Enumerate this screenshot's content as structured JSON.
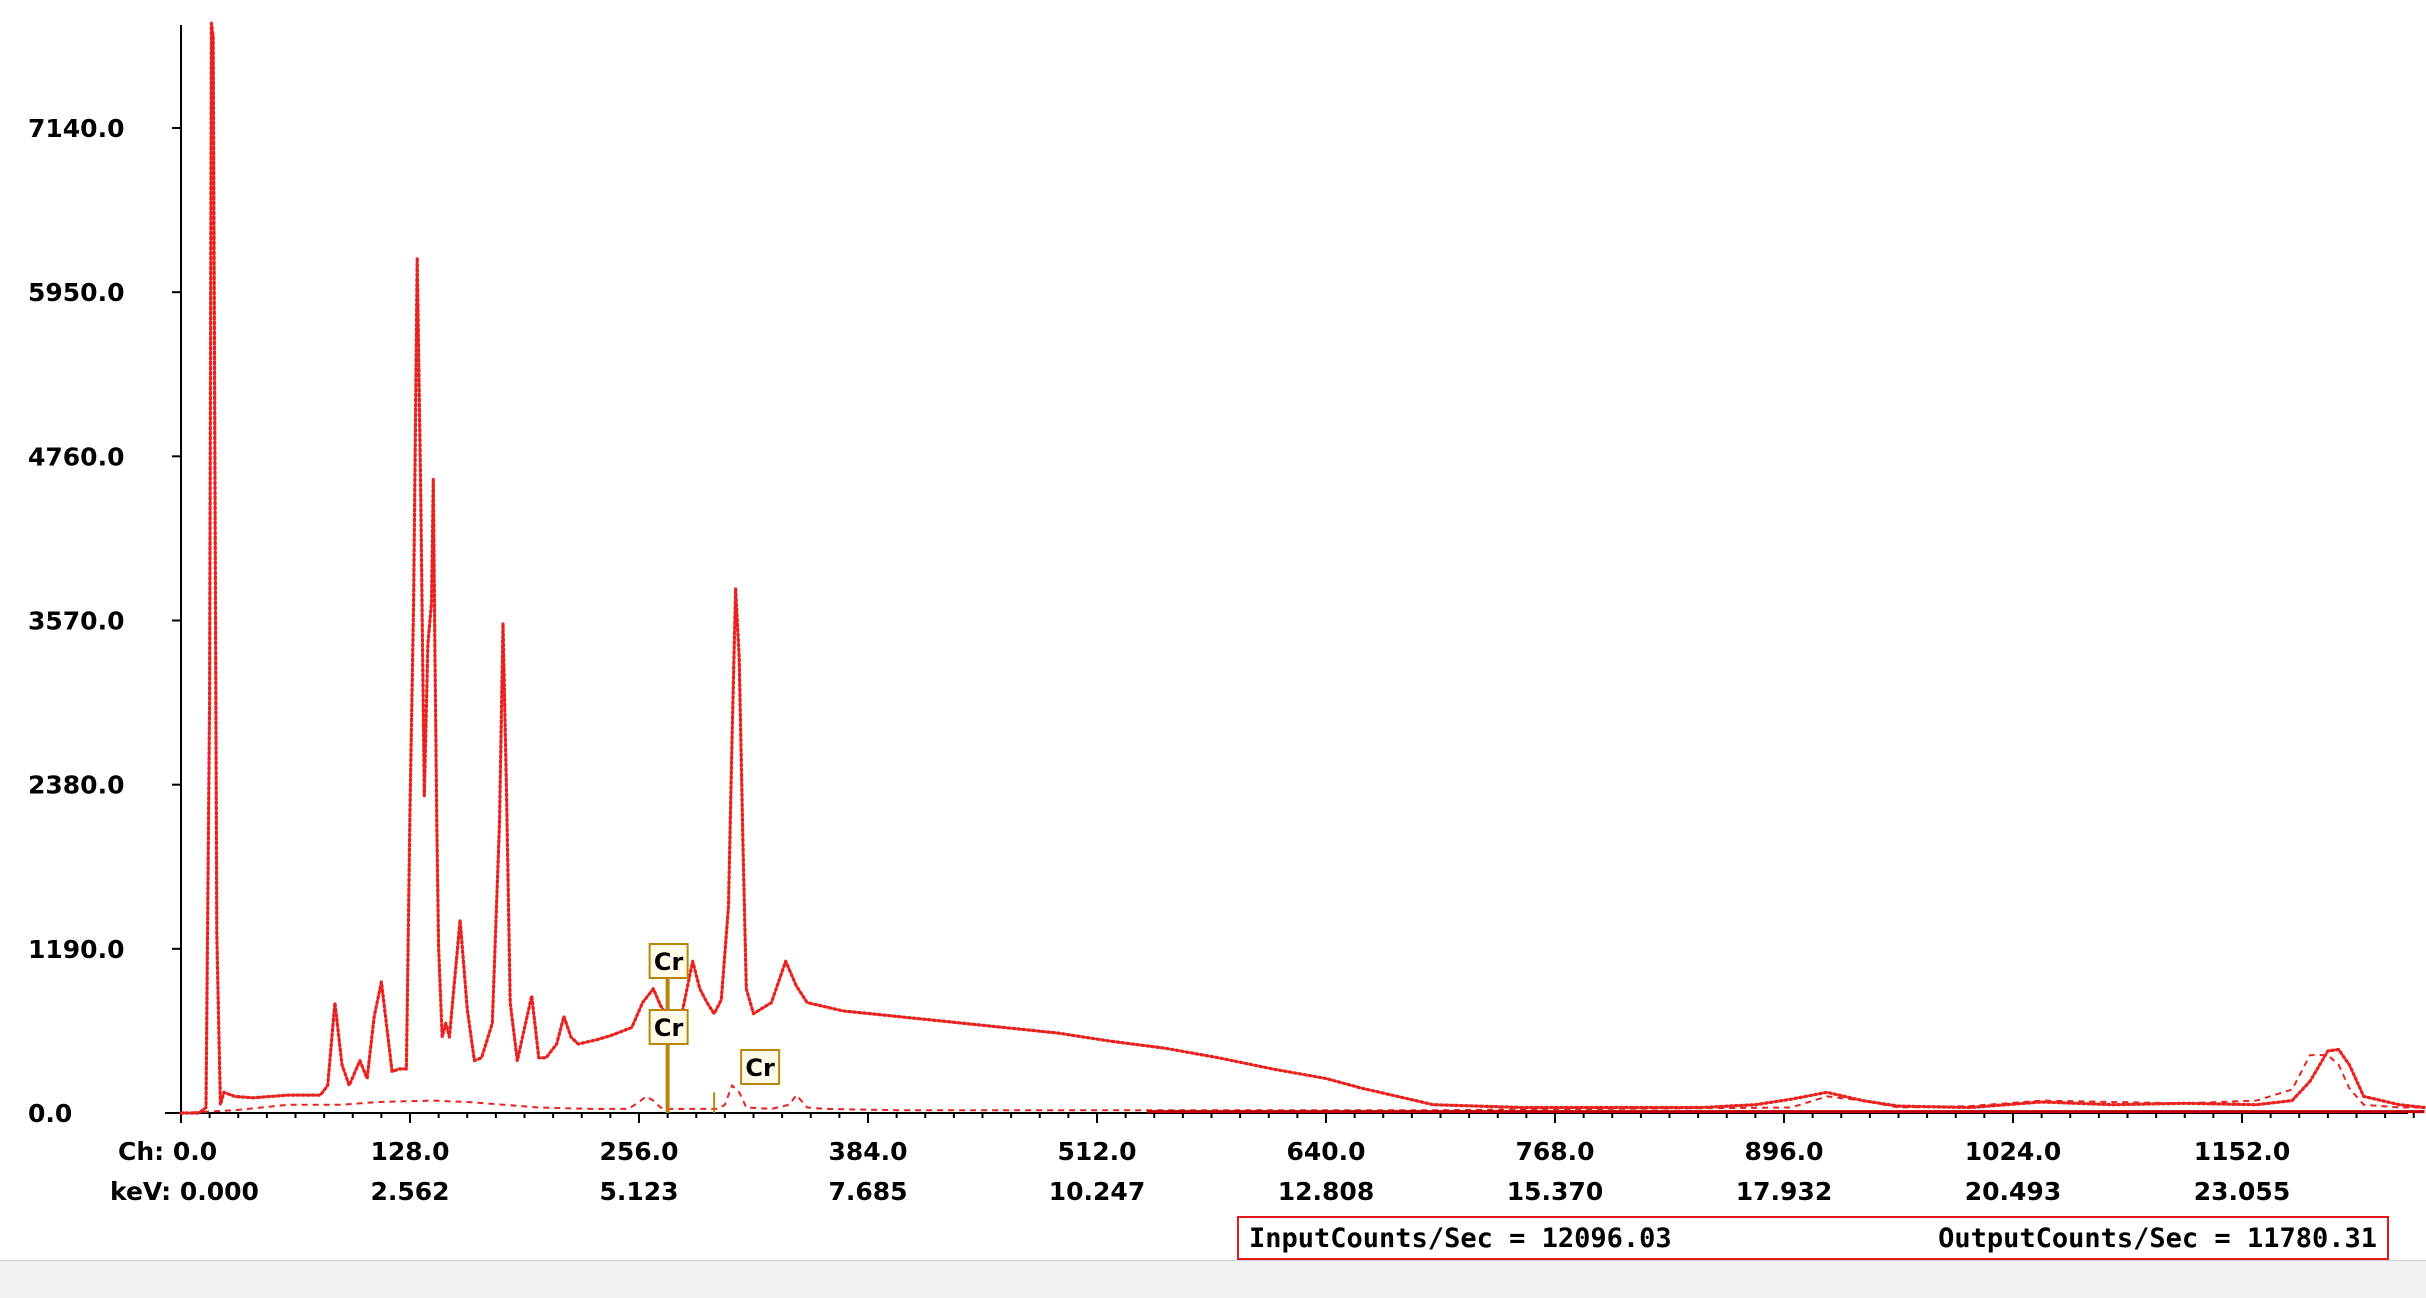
{
  "chart_data": {
    "type": "line",
    "title": "",
    "xlabel": "",
    "ylabel": "",
    "ylim": [
      0,
      7900
    ],
    "xlim": [
      0,
      1254
    ],
    "y_ticks": [
      "0.0",
      "1190.0",
      "2380.0",
      "3570.0",
      "4760.0",
      "5950.0",
      "7140.0"
    ],
    "y_tick_values": [
      0,
      1190,
      2380,
      3570,
      4760,
      5950,
      7140
    ],
    "x_tick_values": [
      0,
      128,
      256,
      384,
      512,
      640,
      768,
      896,
      1024,
      1152
    ],
    "x_ticks_ch": [
      "Ch: 0.0",
      "128.0",
      "256.0",
      "384.0",
      "512.0",
      "640.0",
      "768.0",
      "896.0",
      "1024.0",
      "1152.0"
    ],
    "x_ticks_kev": [
      "keV: 0.000",
      "2.562",
      "5.123",
      "7.685",
      "10.247",
      "12.808",
      "15.370",
      "17.932",
      "20.493",
      "23.055"
    ],
    "series": [
      {
        "color": "#e8231f",
        "style": "dotted-main",
        "x": [
          0,
          10,
          14,
          16,
          17,
          18,
          20,
          22,
          24,
          30,
          40,
          60,
          70,
          78,
          82,
          86,
          90,
          94,
          100,
          104,
          108,
          112,
          118,
          122,
          126,
          128,
          130,
          132,
          134,
          136,
          138,
          140,
          141,
          142,
          143,
          144,
          146,
          148,
          150,
          156,
          160,
          164,
          168,
          174,
          178,
          180,
          182,
          184,
          188,
          196,
          200,
          204,
          210,
          214,
          218,
          222,
          232,
          240,
          252,
          258,
          264,
          268,
          272,
          276,
          280,
          286,
          290,
          294,
          298,
          302,
          306,
          308,
          310,
          312,
          314,
          316,
          320,
          330,
          338,
          344,
          350,
          370,
          400,
          430,
          460,
          490,
          520,
          550,
          580,
          610,
          640,
          660,
          680,
          700,
          750,
          800,
          850,
          880,
          900,
          920,
          940,
          960,
          1000,
          1040,
          1080,
          1120,
          1160,
          1180,
          1190,
          1200,
          1206,
          1212,
          1220,
          1240,
          1254
        ],
        "y": [
          0,
          0,
          40,
          3000,
          7900,
          7800,
          1300,
          60,
          150,
          120,
          110,
          130,
          130,
          130,
          200,
          800,
          350,
          200,
          380,
          250,
          700,
          950,
          300,
          320,
          320,
          2200,
          3700,
          6200,
          4500,
          2300,
          3400,
          3700,
          4600,
          3300,
          2100,
          1200,
          550,
          650,
          550,
          1400,
          750,
          380,
          400,
          650,
          2100,
          3550,
          2300,
          800,
          380,
          850,
          400,
          400,
          500,
          700,
          550,
          500,
          530,
          560,
          620,
          800,
          900,
          780,
          700,
          620,
          720,
          1100,
          900,
          800,
          720,
          820,
          1500,
          2700,
          3800,
          3300,
          2000,
          900,
          720,
          800,
          1100,
          920,
          800,
          740,
          700,
          660,
          620,
          580,
          520,
          470,
          400,
          320,
          250,
          180,
          120,
          60,
          40,
          40,
          40,
          60,
          100,
          150,
          90,
          50,
          40,
          80,
          60,
          70,
          60,
          90,
          230,
          450,
          460,
          350,
          120,
          60,
          40
        ]
      },
      {
        "color": "#e8231f",
        "style": "dashed-secondary",
        "x": [
          0,
          30,
          60,
          90,
          110,
          140,
          160,
          180,
          200,
          230,
          250,
          256,
          260,
          264,
          268,
          272,
          276,
          280,
          300,
          304,
          308,
          312,
          316,
          330,
          340,
          344,
          350,
          360,
          400,
          460,
          500,
          600,
          700,
          800,
          900,
          920,
          940,
          960,
          1000,
          1040,
          1080,
          1120,
          1160,
          1180,
          1190,
          1200,
          1206,
          1212,
          1220,
          1240,
          1254
        ],
        "y": [
          0,
          20,
          60,
          60,
          80,
          90,
          80,
          60,
          40,
          30,
          30,
          80,
          120,
          90,
          40,
          30,
          30,
          30,
          30,
          60,
          200,
          150,
          40,
          30,
          60,
          130,
          40,
          30,
          20,
          20,
          20,
          20,
          20,
          30,
          40,
          120,
          90,
          40,
          50,
          90,
          80,
          70,
          90,
          170,
          420,
          420,
          350,
          180,
          60,
          40,
          40
        ]
      },
      {
        "color": "#c00000",
        "style": "solid-baseline",
        "x": [
          540,
          1254
        ],
        "y": [
          10,
          10
        ]
      }
    ],
    "annotations": [
      {
        "label": "Cr",
        "channel": 272,
        "line_top": 1060
      },
      {
        "label": "Cr",
        "channel": 272
      },
      {
        "label": "Cr",
        "channel": 298,
        "line_top": 150
      }
    ]
  },
  "status": {
    "input_counts": "InputCounts/Sec = 12096.03",
    "output_counts": "OutputCounts/Sec = 11780.31"
  }
}
